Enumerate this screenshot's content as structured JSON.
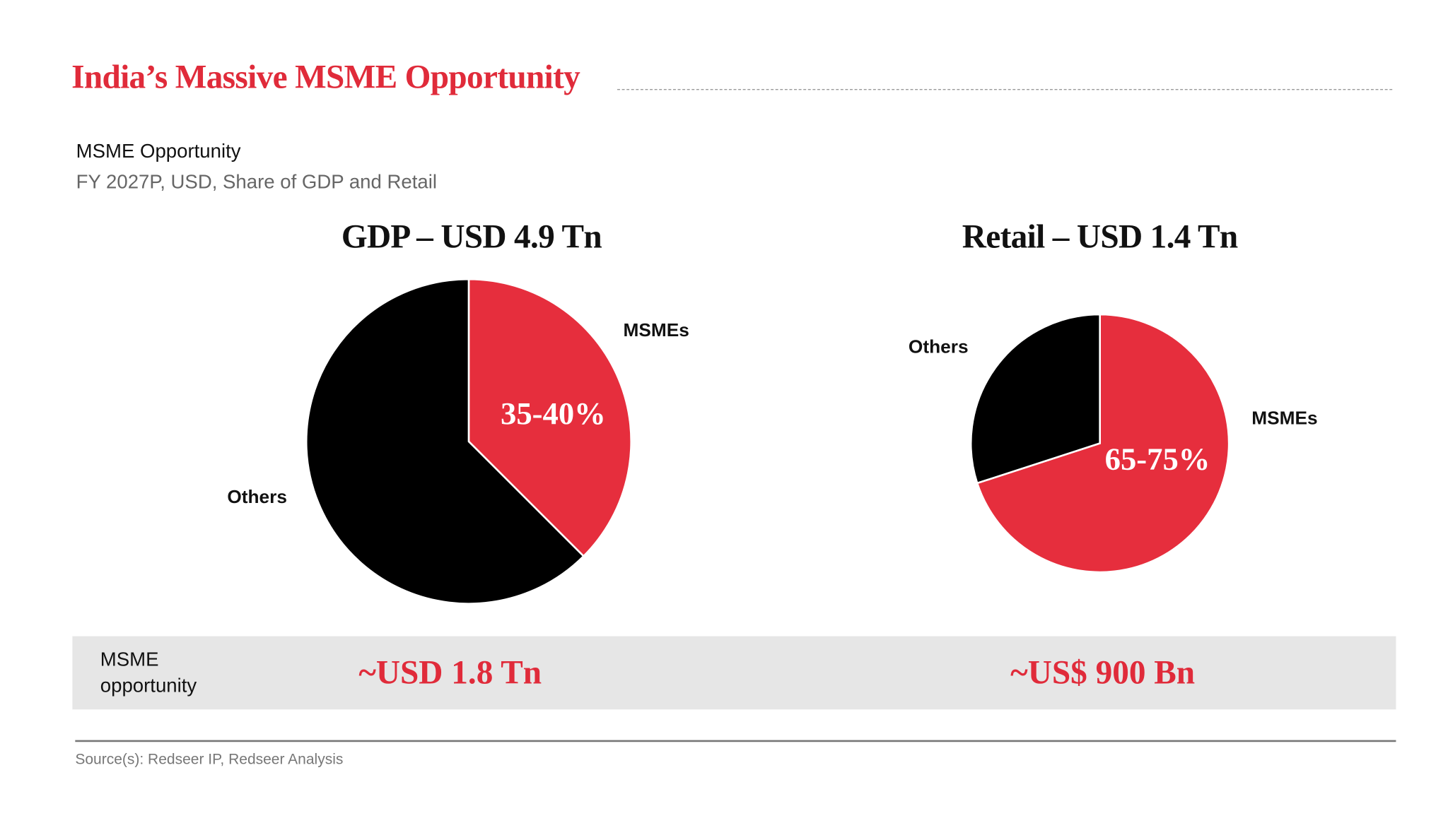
{
  "title": "India’s Massive MSME Opportunity",
  "subtitle": "MSME Opportunity",
  "subtitle2": "FY 2027P, USD, Share of GDP and Retail",
  "colors": {
    "accent": "#e62e3d",
    "others": "#000000"
  },
  "chart_data": [
    {
      "type": "pie",
      "title": "GDP – USD 4.9 Tn",
      "slices": [
        {
          "label": "MSMEs",
          "value": 37.5,
          "data_label": "35-40%",
          "color": "#e62e3d"
        },
        {
          "label": "Others",
          "value": 62.5,
          "color": "#000000"
        }
      ]
    },
    {
      "type": "pie",
      "title": "Retail – USD 1.4 Tn",
      "slices": [
        {
          "label": "MSMEs",
          "value": 70,
          "data_label": "65-75%",
          "color": "#e62e3d"
        },
        {
          "label": "Others",
          "value": 30,
          "color": "#000000"
        }
      ]
    }
  ],
  "opportunity": {
    "label": "MSME opportunity",
    "gdp_value": "~USD 1.8 Tn",
    "retail_value": "~US$ 900 Bn"
  },
  "source": "Source(s): Redseer IP, Redseer Analysis"
}
